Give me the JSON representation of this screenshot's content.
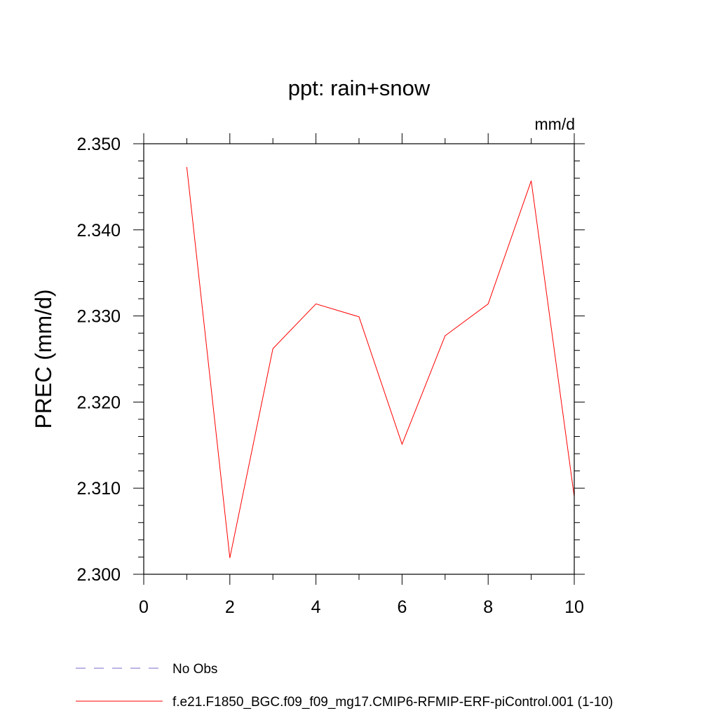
{
  "chart_data": {
    "type": "line",
    "title": "ppt: rain+snow",
    "units_label": "mm/d",
    "xlabel": "",
    "ylabel": "PREC  (mm/d)",
    "xlim": [
      0,
      10
    ],
    "ylim": [
      2.3,
      2.35
    ],
    "x_ticks": [
      0,
      2,
      4,
      6,
      8,
      10
    ],
    "x_tick_labels": [
      "0",
      "2",
      "4",
      "6",
      "8",
      "10"
    ],
    "x_minor_step": 1,
    "y_ticks": [
      2.3,
      2.31,
      2.32,
      2.33,
      2.34,
      2.35
    ],
    "y_tick_labels": [
      "2.300",
      "2.310",
      "2.320",
      "2.330",
      "2.340",
      "2.350"
    ],
    "y_minor_step": 0.002,
    "grid": false,
    "legend_position": "bottom",
    "series": [
      {
        "name": "f.e21.F1850_BGC.f09_f09_mg17.CMIP6-RFMIP-ERF-piControl.001 (1-10)",
        "color": "#ff0000",
        "dash": "solid",
        "x": [
          1,
          2,
          3,
          4,
          5,
          6,
          7,
          8,
          9,
          10
        ],
        "y": [
          2.3473,
          2.3019,
          2.3262,
          2.3314,
          2.3299,
          2.3151,
          2.3277,
          2.3314,
          2.3457,
          2.309
        ]
      }
    ],
    "legend": [
      {
        "label": "No Obs",
        "color": "#7b68c8",
        "dash": "dashed"
      },
      {
        "label": "f.e21.F1850_BGC.f09_f09_mg17.CMIP6-RFMIP-ERF-piControl.001 (1-10)",
        "color": "#ff0000",
        "dash": "solid"
      }
    ]
  }
}
